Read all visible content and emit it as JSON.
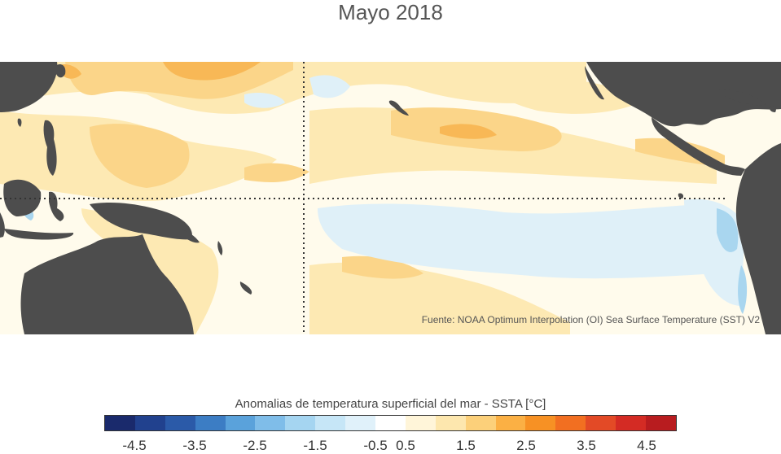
{
  "title": "Mayo 2018",
  "source": "Fuente: NOAA Optimum Interpolation (OI) Sea Surface Temperature (SST) V2",
  "legend": {
    "title": "Anomalias de temperatura superficial del mar - SSTA  [°C]",
    "colors": [
      "#1a2a6c",
      "#21418e",
      "#2b5aa8",
      "#3c7dc4",
      "#5aa2db",
      "#7fbde9",
      "#a5d5f1",
      "#c6e6f7",
      "#e0f1fa",
      "#ffffff",
      "#fff5d9",
      "#fde7ae",
      "#fcd07a",
      "#fbb044",
      "#f79124",
      "#f26f21",
      "#e34a26",
      "#d42b24",
      "#b81c1f"
    ],
    "ticks": [
      "-4.5",
      "-3.5",
      "-2.5",
      "-1.5",
      "-0.5",
      "0.5",
      "1.5",
      "2.5",
      "3.5",
      "4.5"
    ]
  },
  "map": {
    "colors": {
      "land": "#4d4d4d",
      "neutral": "#fffbec",
      "warm_light": "#fde9b3",
      "warm_mid": "#fbd589",
      "warm_strong": "#f8b856",
      "cool_light": "#dff0f8",
      "cool_mid": "#a9d6ef",
      "gridline": "#333333"
    }
  }
}
